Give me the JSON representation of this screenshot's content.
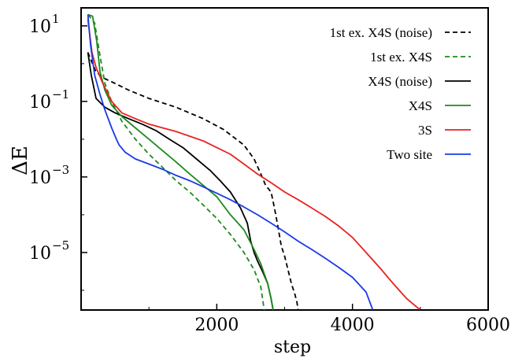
{
  "chart_data": {
    "type": "line",
    "xlabel": "step",
    "ylabel": "ΔE",
    "xlim": [
      0,
      6000
    ],
    "ylim": [
      3e-07,
      30
    ],
    "yscale": "log",
    "xticks": [
      2000,
      4000,
      6000
    ],
    "yticks": [
      {
        "value": 10,
        "base": "10",
        "exp": "1"
      },
      {
        "value": 0.1,
        "base": "10",
        "exp": "−1"
      },
      {
        "value": 0.001,
        "base": "10",
        "exp": "−3"
      },
      {
        "value": 1e-05,
        "base": "10",
        "exp": "−5"
      }
    ],
    "grid": false,
    "legend_position": "top-right",
    "series": [
      {
        "name": "1st ex. X4S (noise)",
        "color": "#000000",
        "dash": true,
        "points": [
          [
            100,
            2
          ],
          [
            150,
            1.2
          ],
          [
            220,
            0.6
          ],
          [
            350,
            0.4
          ],
          [
            500,
            0.3
          ],
          [
            700,
            0.2
          ],
          [
            1000,
            0.12
          ],
          [
            1400,
            0.07
          ],
          [
            1800,
            0.035
          ],
          [
            2100,
            0.018
          ],
          [
            2400,
            0.007
          ],
          [
            2550,
            0.003
          ],
          [
            2650,
            0.0012
          ],
          [
            2720,
            0.0006
          ],
          [
            2800,
            0.0004
          ],
          [
            2850,
            0.00015
          ],
          [
            2900,
            5e-05
          ],
          [
            2950,
            1.5e-05
          ],
          [
            3000,
            8e-06
          ],
          [
            3100,
            1.5e-06
          ],
          [
            3150,
            8e-07
          ],
          [
            3180,
            5e-07
          ],
          [
            3200,
            3e-07
          ]
        ]
      },
      {
        "name": "1st ex. X4S",
        "color": "#1e8a1e",
        "dash": true,
        "points": [
          [
            100,
            20
          ],
          [
            200,
            12
          ],
          [
            270,
            2
          ],
          [
            350,
            0.3
          ],
          [
            450,
            0.1
          ],
          [
            600,
            0.03
          ],
          [
            800,
            0.01
          ],
          [
            1000,
            0.004
          ],
          [
            1200,
            0.0018
          ],
          [
            1400,
            0.0008
          ],
          [
            1600,
            0.0004
          ],
          [
            1800,
            0.00018
          ],
          [
            2000,
            8e-05
          ],
          [
            2200,
            3e-05
          ],
          [
            2400,
            1e-05
          ],
          [
            2550,
            3.5e-06
          ],
          [
            2650,
            1.2e-06
          ],
          [
            2700,
            3e-07
          ]
        ]
      },
      {
        "name": "X4S (noise)",
        "color": "#000000",
        "dash": false,
        "points": [
          [
            100,
            2
          ],
          [
            150,
            0.5
          ],
          [
            220,
            0.12
          ],
          [
            350,
            0.07
          ],
          [
            500,
            0.05
          ],
          [
            700,
            0.035
          ],
          [
            900,
            0.025
          ],
          [
            1100,
            0.017
          ],
          [
            1300,
            0.01
          ],
          [
            1500,
            0.006
          ],
          [
            1700,
            0.003
          ],
          [
            1900,
            0.0015
          ],
          [
            2050,
            0.0008
          ],
          [
            2200,
            0.0004
          ],
          [
            2350,
            0.00015
          ],
          [
            2450,
            6e-05
          ],
          [
            2500,
            2e-05
          ],
          [
            2550,
            1e-05
          ],
          [
            2600,
            6e-06
          ],
          [
            2680,
            3e-06
          ],
          [
            2750,
            1.5e-06
          ],
          [
            2800,
            6e-07
          ],
          [
            2830,
            3e-07
          ]
        ]
      },
      {
        "name": "X4S",
        "color": "#1e8a1e",
        "dash": false,
        "points": [
          [
            100,
            20
          ],
          [
            170,
            18
          ],
          [
            230,
            4
          ],
          [
            280,
            0.6
          ],
          [
            350,
            0.2
          ],
          [
            450,
            0.08
          ],
          [
            600,
            0.04
          ],
          [
            800,
            0.02
          ],
          [
            1000,
            0.01
          ],
          [
            1200,
            0.005
          ],
          [
            1400,
            0.0025
          ],
          [
            1600,
            0.0012
          ],
          [
            1800,
            0.0006
          ],
          [
            2000,
            0.0003
          ],
          [
            2200,
            0.0001
          ],
          [
            2400,
            4e-05
          ],
          [
            2550,
            1.2e-05
          ],
          [
            2650,
            5e-06
          ],
          [
            2750,
            1.5e-06
          ],
          [
            2800,
            6e-07
          ],
          [
            2830,
            3e-07
          ]
        ]
      },
      {
        "name": "3S",
        "color": "#e8231f",
        "dash": false,
        "points": [
          [
            100,
            15
          ],
          [
            160,
            2
          ],
          [
            220,
            0.8
          ],
          [
            320,
            0.3
          ],
          [
            450,
            0.1
          ],
          [
            600,
            0.05
          ],
          [
            800,
            0.035
          ],
          [
            1000,
            0.025
          ],
          [
            1200,
            0.02
          ],
          [
            1400,
            0.016
          ],
          [
            1600,
            0.012
          ],
          [
            1800,
            0.009
          ],
          [
            2000,
            0.006
          ],
          [
            2200,
            0.004
          ],
          [
            2400,
            0.0022
          ],
          [
            2600,
            0.0012
          ],
          [
            2800,
            0.0007
          ],
          [
            3000,
            0.0004
          ],
          [
            3200,
            0.00025
          ],
          [
            3400,
            0.00015
          ],
          [
            3600,
            9e-05
          ],
          [
            3800,
            5e-05
          ],
          [
            4000,
            2.5e-05
          ],
          [
            4200,
            1e-05
          ],
          [
            4400,
            4e-06
          ],
          [
            4600,
            1.5e-06
          ],
          [
            4800,
            6e-07
          ],
          [
            5000,
            3e-07
          ]
        ]
      },
      {
        "name": "Two site",
        "color": "#1a3ae8",
        "dash": false,
        "points": [
          [
            100,
            20
          ],
          [
            140,
            3
          ],
          [
            200,
            0.5
          ],
          [
            280,
            0.15
          ],
          [
            350,
            0.06
          ],
          [
            450,
            0.02
          ],
          [
            520,
            0.01
          ],
          [
            560,
            0.007
          ],
          [
            650,
            0.0045
          ],
          [
            800,
            0.003
          ],
          [
            1000,
            0.0022
          ],
          [
            1200,
            0.0016
          ],
          [
            1400,
            0.0011
          ],
          [
            1600,
            0.0008
          ],
          [
            1800,
            0.00055
          ],
          [
            2000,
            0.00037
          ],
          [
            2200,
            0.00025
          ],
          [
            2400,
            0.00016
          ],
          [
            2600,
            0.0001
          ],
          [
            2800,
            6e-05
          ],
          [
            3000,
            3.5e-05
          ],
          [
            3200,
            2e-05
          ],
          [
            3400,
            1.2e-05
          ],
          [
            3600,
            7e-06
          ],
          [
            3800,
            4e-06
          ],
          [
            4000,
            2.2e-06
          ],
          [
            4200,
            9e-07
          ],
          [
            4300,
            3e-07
          ]
        ]
      }
    ]
  }
}
